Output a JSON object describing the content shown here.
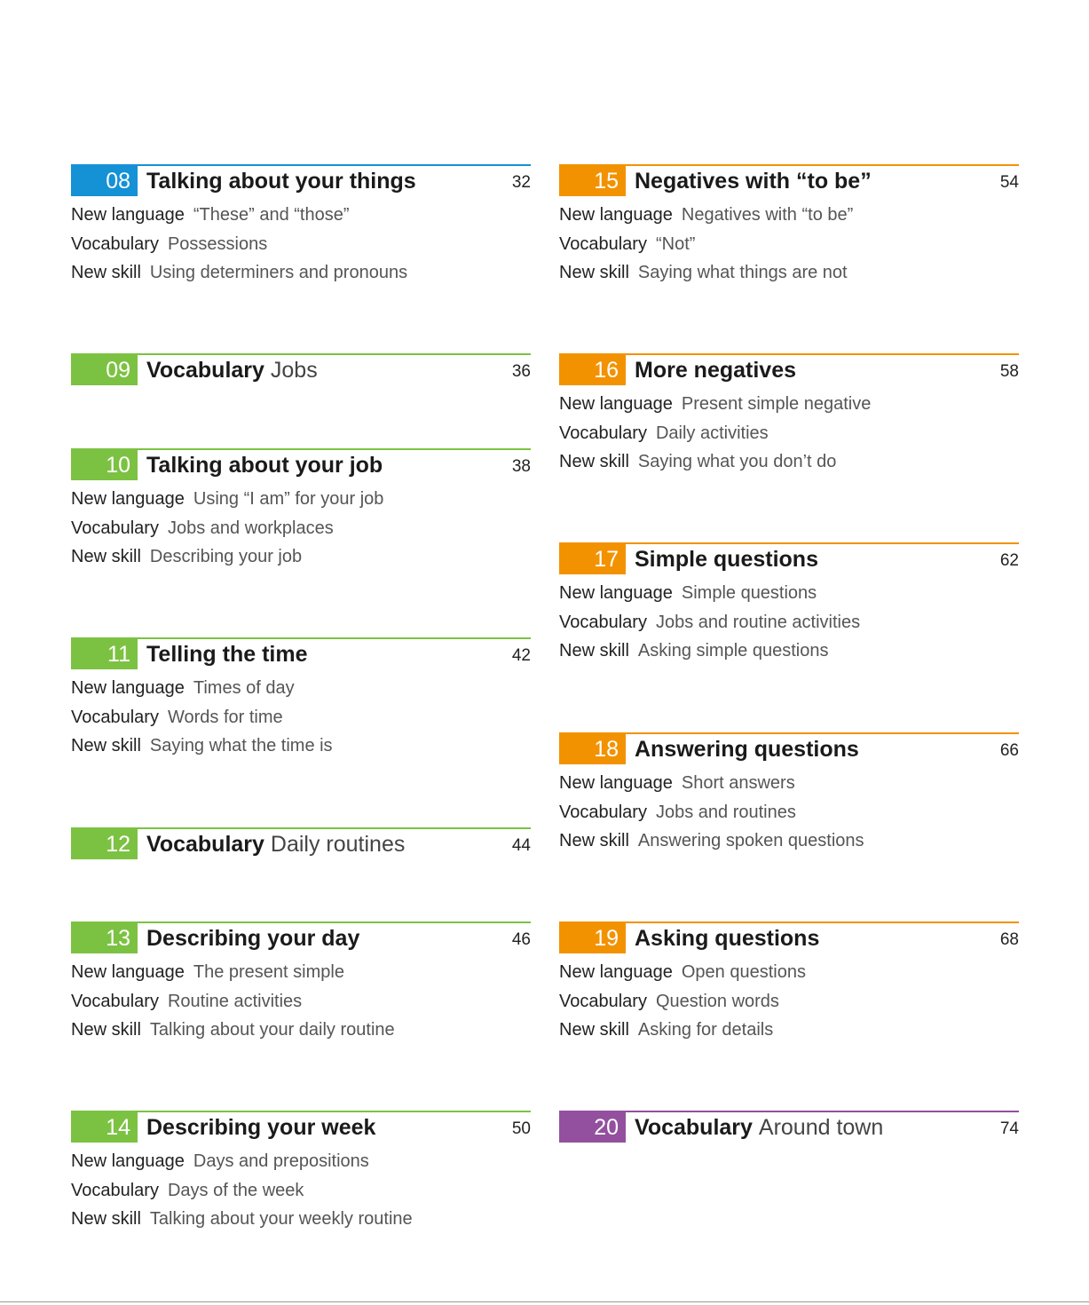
{
  "columns": [
    {
      "entries": [
        {
          "number": "08",
          "title": "Talking about your things",
          "page": 32,
          "color": "#1591d6",
          "details": [
            {
              "label": "New language",
              "text": "“These” and “those”"
            },
            {
              "label": "Vocabulary",
              "text": "Possessions"
            },
            {
              "label": "New skill",
              "text": "Using determiners and pronouns"
            }
          ]
        },
        {
          "number": "09",
          "title": "Vocabulary",
          "subtitle": "Jobs",
          "page": 36,
          "color": "#7cc242"
        },
        {
          "number": "10",
          "title": "Talking about your job",
          "page": 38,
          "color": "#7cc242",
          "details": [
            {
              "label": "New language",
              "text": "Using “I am” for your job"
            },
            {
              "label": "Vocabulary",
              "text": "Jobs and workplaces"
            },
            {
              "label": "New skill",
              "text": "Describing your job"
            }
          ]
        },
        {
          "number": "11",
          "title": "Telling the time",
          "page": 42,
          "color": "#7cc242",
          "details": [
            {
              "label": "New language",
              "text": "Times of day"
            },
            {
              "label": "Vocabulary",
              "text": "Words for time"
            },
            {
              "label": "New skill",
              "text": "Saying what the time is"
            }
          ]
        },
        {
          "number": "12",
          "title": "Vocabulary",
          "subtitle": "Daily routines",
          "page": 44,
          "color": "#7cc242"
        },
        {
          "number": "13",
          "title": "Describing your day",
          "page": 46,
          "color": "#7cc242",
          "details": [
            {
              "label": "New language",
              "text": "The present simple"
            },
            {
              "label": "Vocabulary",
              "text": "Routine activities"
            },
            {
              "label": "New skill",
              "text": "Talking about your daily routine"
            }
          ]
        },
        {
          "number": "14",
          "title": "Describing your week",
          "page": 50,
          "color": "#7cc242",
          "details": [
            {
              "label": "New language",
              "text": "Days and prepositions"
            },
            {
              "label": "Vocabulary",
              "text": "Days of the week"
            },
            {
              "label": "New skill",
              "text": "Talking about your weekly routine"
            }
          ]
        }
      ]
    },
    {
      "entries": [
        {
          "number": "15",
          "title": "Negatives with “to be”",
          "page": 54,
          "color": "#f39200",
          "details": [
            {
              "label": "New language",
              "text": "Negatives with “to be”"
            },
            {
              "label": "Vocabulary",
              "text": "“Not”"
            },
            {
              "label": "New skill",
              "text": "Saying what things are not"
            }
          ]
        },
        {
          "number": "16",
          "title": "More negatives",
          "page": 58,
          "color": "#f39200",
          "details": [
            {
              "label": "New language",
              "text": "Present simple negative"
            },
            {
              "label": "Vocabulary",
              "text": "Daily activities"
            },
            {
              "label": "New skill",
              "text": "Saying what you don’t do"
            }
          ]
        },
        {
          "number": "17",
          "title": "Simple questions",
          "page": 62,
          "color": "#f39200",
          "details": [
            {
              "label": "New language",
              "text": "Simple questions"
            },
            {
              "label": "Vocabulary",
              "text": "Jobs and routine activities"
            },
            {
              "label": "New skill",
              "text": "Asking simple questions"
            }
          ]
        },
        {
          "number": "18",
          "title": "Answering questions",
          "page": 66,
          "color": "#f39200",
          "details": [
            {
              "label": "New language",
              "text": "Short answers"
            },
            {
              "label": "Vocabulary",
              "text": "Jobs and routines"
            },
            {
              "label": "New skill",
              "text": "Answering spoken questions"
            }
          ]
        },
        {
          "number": "19",
          "title": "Asking questions",
          "page": 68,
          "color": "#f39200",
          "details": [
            {
              "label": "New language",
              "text": "Open questions"
            },
            {
              "label": "Vocabulary",
              "text": "Question words"
            },
            {
              "label": "New skill",
              "text": "Asking for details"
            }
          ]
        },
        {
          "number": "20",
          "title": "Vocabulary",
          "subtitle": "Around town",
          "page": 74,
          "color": "#93509e"
        }
      ]
    }
  ]
}
